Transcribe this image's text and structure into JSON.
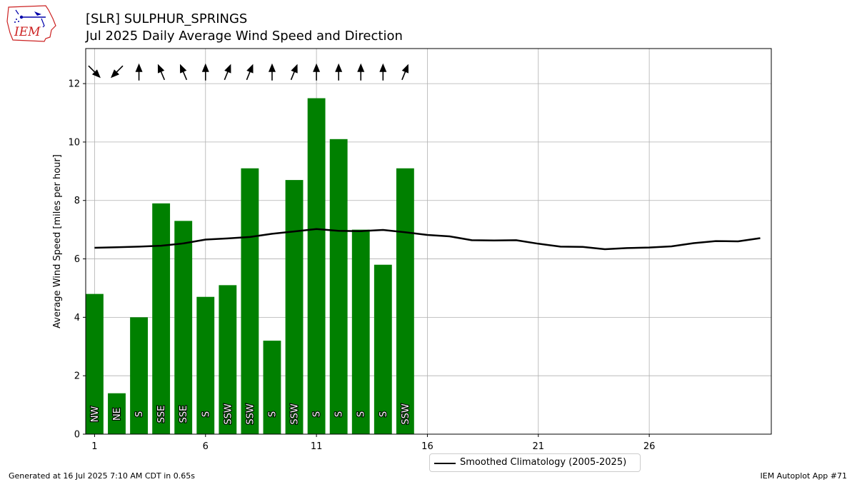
{
  "header": {
    "title_line1": "[SLR] SULPHUR_SPRINGS",
    "title_line2": "Jul 2025 Daily Average Wind Speed and Direction"
  },
  "logo": {
    "text": "IEM",
    "icon": "iem-iowa-map-logo"
  },
  "footer": {
    "left": "Generated at 16 Jul 2025 7:10 AM CDT in 0.65s",
    "right": "IEM Autoplot App #71"
  },
  "legend": {
    "label": "Smoothed Climatology (2005-2025)"
  },
  "colors": {
    "bar": "#008000",
    "line": "#000000",
    "grid": "#b0b0b0",
    "arrow": "#000000"
  },
  "chart_data": {
    "type": "bar",
    "ylabel": "Average Wind Speed [miles per hour]",
    "xlabel": "",
    "ylim": [
      0,
      13.2
    ],
    "xlim": [
      0.6,
      31.5
    ],
    "yticks": [
      0,
      2,
      4,
      6,
      8,
      10,
      12
    ],
    "xticks": [
      1,
      6,
      11,
      16,
      21,
      26
    ],
    "grid": true,
    "legend_position": "bottom-center",
    "bars": {
      "days": [
        1,
        2,
        3,
        4,
        5,
        6,
        7,
        8,
        9,
        10,
        11,
        12,
        13,
        14,
        15
      ],
      "values": [
        4.8,
        1.4,
        4.0,
        7.9,
        7.3,
        4.7,
        5.1,
        9.1,
        3.2,
        8.7,
        11.5,
        10.1,
        7.0,
        5.8,
        9.1
      ],
      "direction_labels": [
        "NW",
        "NE",
        "S",
        "SSE",
        "SSE",
        "S",
        "SSW",
        "SSW",
        "S",
        "SSW",
        "S",
        "S",
        "S",
        "S",
        "SSW"
      ],
      "arrow_directions_deg": [
        315,
        45,
        180,
        157,
        157,
        180,
        202,
        202,
        180,
        202,
        180,
        180,
        180,
        180,
        202
      ]
    },
    "series": [
      {
        "name": "Smoothed Climatology (2005-2025)",
        "type": "line",
        "x": [
          1,
          2,
          3,
          4,
          5,
          6,
          7,
          8,
          9,
          10,
          11,
          12,
          13,
          14,
          15,
          16,
          17,
          18,
          19,
          20,
          21,
          22,
          23,
          24,
          25,
          26,
          27,
          28,
          29,
          30,
          31
        ],
        "values": [
          6.38,
          6.4,
          6.42,
          6.45,
          6.53,
          6.66,
          6.7,
          6.75,
          6.86,
          6.94,
          7.02,
          6.96,
          6.95,
          6.99,
          6.91,
          6.82,
          6.77,
          6.64,
          6.63,
          6.64,
          6.52,
          6.42,
          6.41,
          6.33,
          6.37,
          6.39,
          6.43,
          6.54,
          6.61,
          6.6,
          6.71
        ]
      }
    ]
  }
}
